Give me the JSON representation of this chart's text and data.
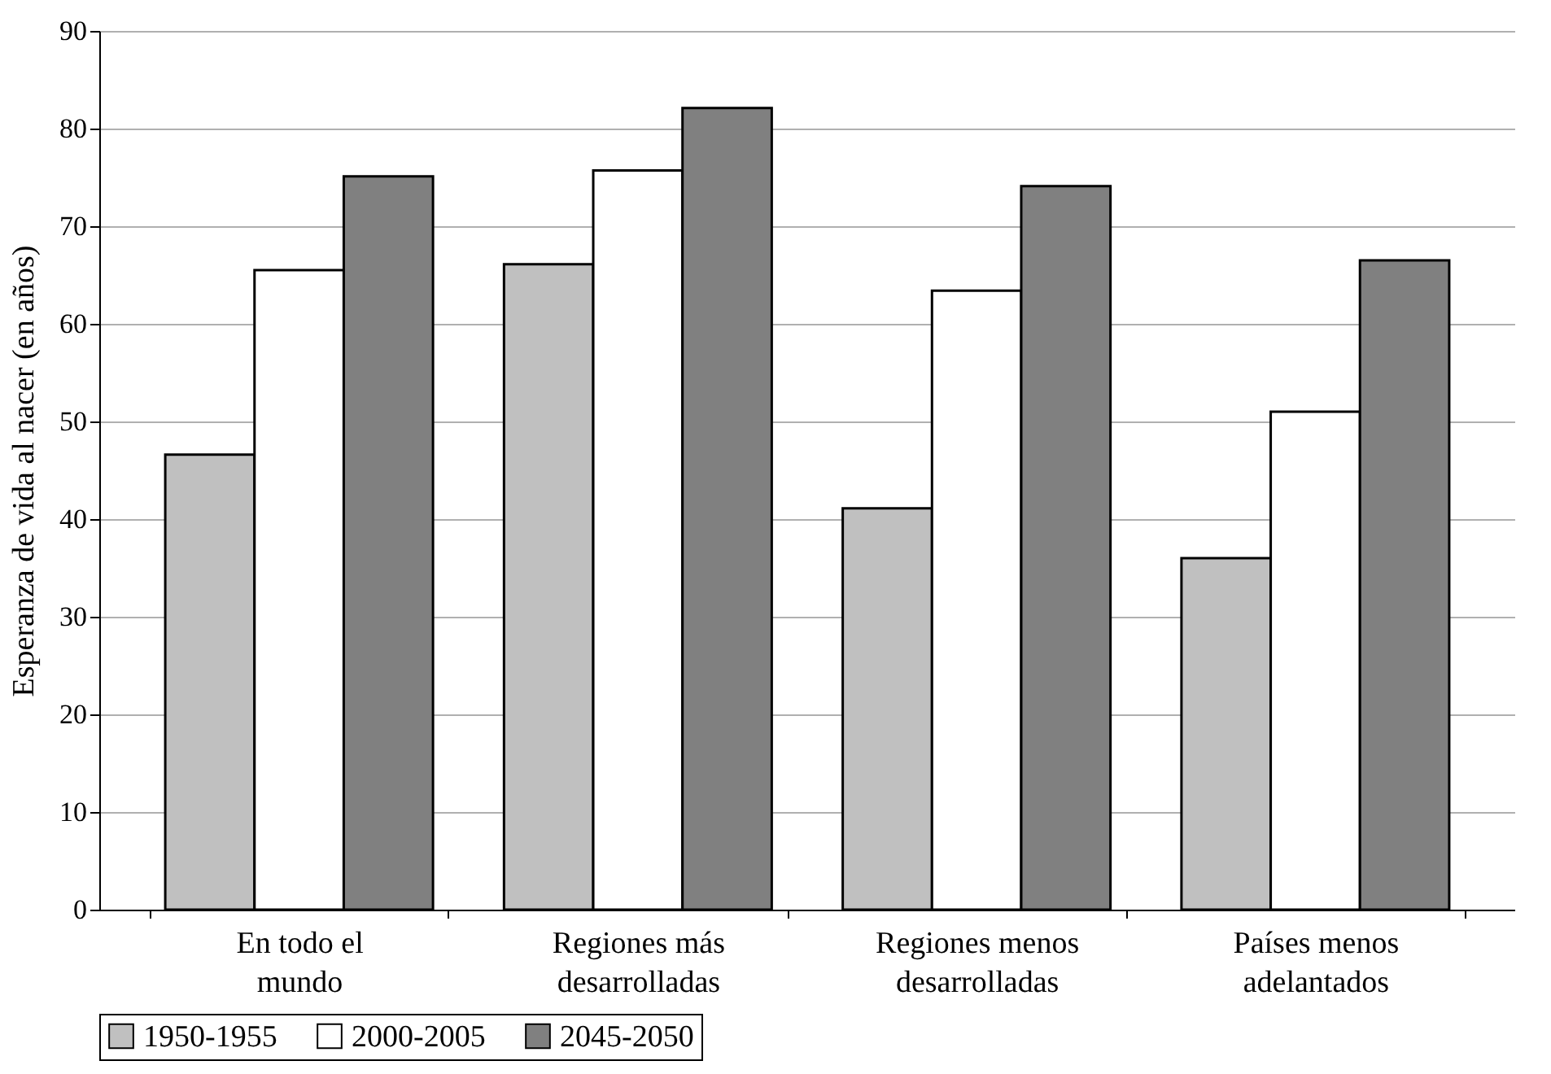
{
  "chart_data": {
    "type": "bar",
    "ylabel": "Esperanza de vida al nacer (en años)",
    "categories": [
      "En todo el mundo",
      "Regiones más desarrolladas",
      "Regiones menos desarrolladas",
      "Países menos adelantados"
    ],
    "series": [
      {
        "name": "1950-1955",
        "color": "#c0c0c0",
        "values": [
          46.6,
          66.1,
          41.1,
          36.0
        ]
      },
      {
        "name": "2000-2005",
        "color": "#ffffff",
        "values": [
          65.5,
          75.7,
          63.4,
          51.0
        ]
      },
      {
        "name": "2045-2050",
        "color": "#808080",
        "values": [
          75.1,
          82.1,
          74.1,
          66.5
        ]
      }
    ],
    "ylim": [
      0,
      90
    ],
    "yticks": [
      0,
      10,
      20,
      30,
      40,
      50,
      60,
      70,
      80,
      90
    ],
    "grid": "y",
    "legend": "bottom"
  }
}
